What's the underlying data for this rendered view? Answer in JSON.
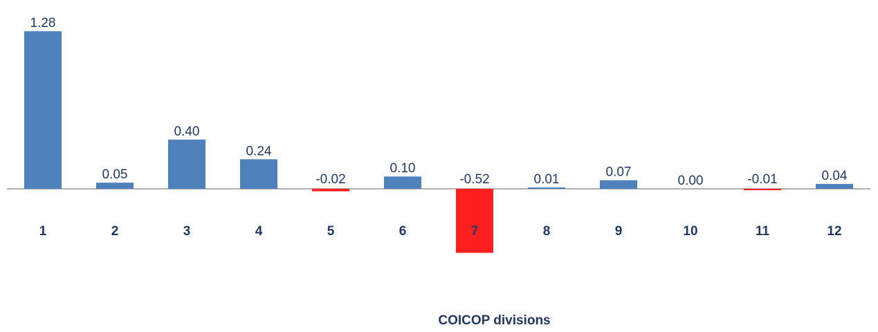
{
  "chart_data": {
    "type": "bar",
    "categories": [
      "1",
      "2",
      "3",
      "4",
      "5",
      "6",
      "7",
      "8",
      "9",
      "10",
      "11",
      "12"
    ],
    "values": [
      1.28,
      0.05,
      0.4,
      0.24,
      -0.02,
      0.1,
      -0.52,
      0.01,
      0.07,
      0.0,
      -0.01,
      0.04
    ],
    "value_labels": [
      "1.28",
      "0.05",
      "0.40",
      "0.24",
      "-0.02",
      "0.10",
      "-0.52",
      "0.01",
      "0.07",
      "0.00",
      "-0.01",
      "0.04"
    ],
    "title": "",
    "xlabel": "COICOP divisions",
    "ylabel": "",
    "ylim": [
      -0.52,
      1.28
    ],
    "grid": false,
    "legend": "none",
    "colors": {
      "positive": "#4f81bd",
      "negative": "#ff1f1f",
      "axis": "#808080",
      "text": "#1f3864"
    }
  }
}
